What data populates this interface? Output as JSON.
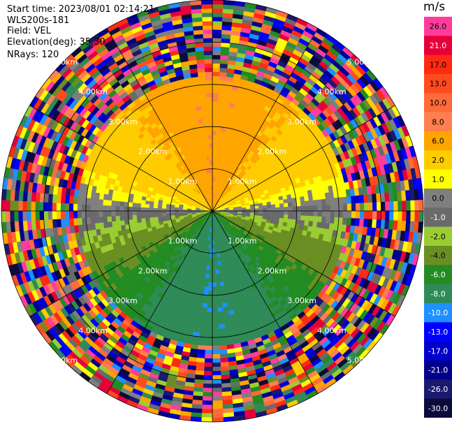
{
  "header": {
    "start_time": "Start time: 2023/08/01 02:14:21",
    "instrument": "WLS200s-181",
    "field": "Field: VEL",
    "elevation": "Elevation(deg): 35.30",
    "nrays": "NRays: 120"
  },
  "chart_data": {
    "type": "heatmap",
    "subtype": "ppi-polar",
    "field": "VEL",
    "n_rays": 120,
    "range_rings_km": [
      1.0,
      2.0,
      3.0,
      4.0,
      5.0
    ],
    "ring_labels": [
      "1.00km",
      "2.00km",
      "3.00km",
      "4.00km",
      "5.00km"
    ],
    "max_range_km": 5.0,
    "clean_range_km": 3.2,
    "colorbar": {
      "unit": "m/s",
      "tick_labels": [
        "26.0",
        "21.0",
        "17.0",
        "13.0",
        "10.0",
        "8.0",
        "6.0",
        "2.0",
        "1.0",
        "0.0",
        "-1.0",
        "-2.0",
        "-4.0",
        "-6.0",
        "-8.0",
        "-10.0",
        "-13.0",
        "-17.0",
        "-21.0",
        "-26.0",
        "-30.0"
      ],
      "colors": [
        "#ff3c9e",
        "#e6003a",
        "#ff2a12",
        "#ff4b1e",
        "#ff6a3a",
        "#ff7f50",
        "#ffa500",
        "#ffcc00",
        "#ffff00",
        "#7f7f7f",
        "#6a6a6a",
        "#9acd32",
        "#6b8e23",
        "#228b22",
        "#2e8b57",
        "#1e90ff",
        "#0000ff",
        "#0000cd",
        "#00008b",
        "#191970",
        "#0b0b3b"
      ],
      "text_colors": [
        "#000000",
        "#ffffff",
        "#000000",
        "#000000",
        "#000000",
        "#000000",
        "#000000",
        "#000000",
        "#000000",
        "#000000",
        "#ffffff",
        "#000000",
        "#000000",
        "#ffffff",
        "#ffffff",
        "#ffffff",
        "#ffffff",
        "#ffffff",
        "#ffffff",
        "#ffffff",
        "#ffffff"
      ]
    },
    "pattern": "velocity dipole: positive (warm colours) to the north, negative (green/blue) to the south, near-zero grey band east-west; beyond ~3.2 km the field is noise (random colours)"
  }
}
